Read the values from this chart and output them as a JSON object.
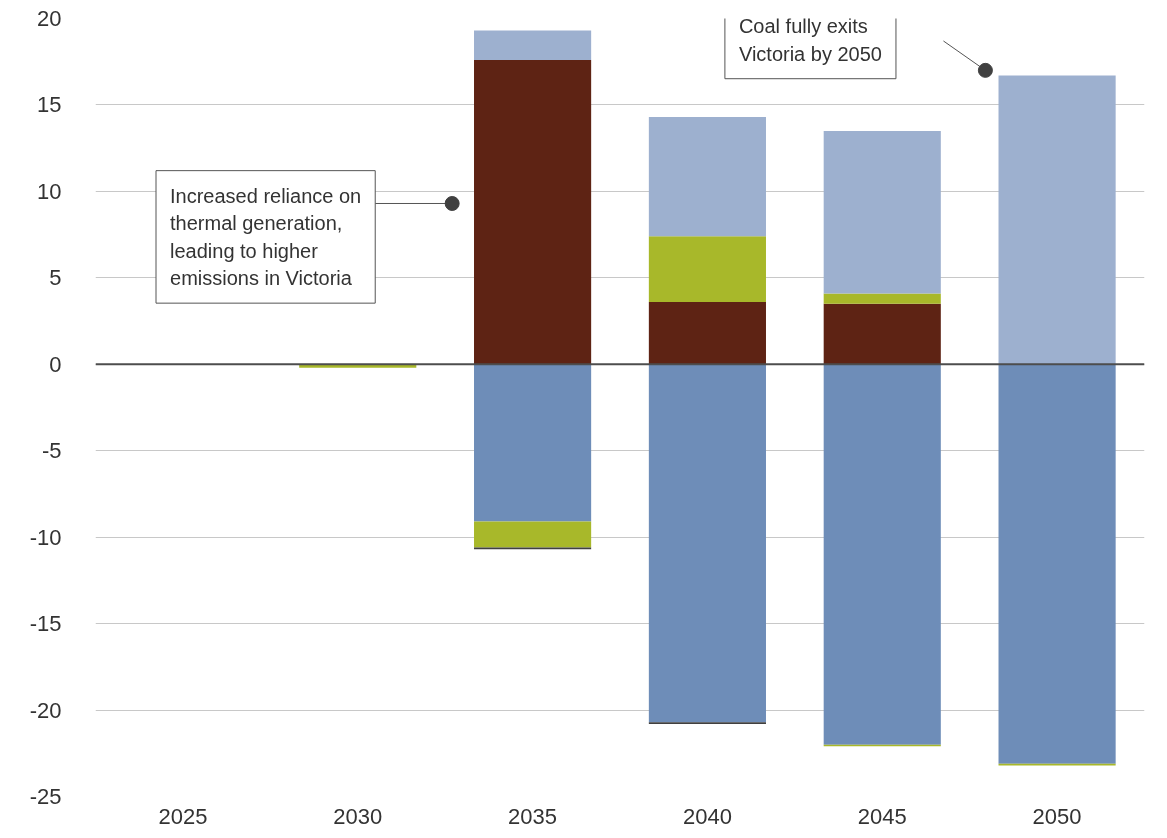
{
  "chart_data": {
    "type": "bar",
    "stacked": true,
    "categories": [
      "2025",
      "2030",
      "2035",
      "2040",
      "2045",
      "2050"
    ],
    "series": [
      {
        "color": "#5e2314",
        "values": [
          0,
          0,
          17.6,
          3.6,
          3.5,
          0
        ]
      },
      {
        "color": "#a8b82a",
        "values": [
          0,
          0,
          0,
          3.8,
          0.6,
          0
        ]
      },
      {
        "color": "#9db0cf",
        "values": [
          0,
          0,
          1.7,
          6.9,
          9.4,
          16.7
        ]
      },
      {
        "color": "#6e8db8",
        "values": [
          0,
          0,
          -9.1,
          -20.7,
          -22.0,
          -23.1
        ]
      },
      {
        "color": "#a8b82a",
        "values": [
          0,
          -0.2,
          -1.5,
          0,
          -0.1,
          -0.1
        ]
      },
      {
        "color": "#404040",
        "values": [
          0,
          0,
          -0.1,
          -0.1,
          0,
          0
        ]
      }
    ],
    "ylim": [
      -25,
      20
    ],
    "yticks": [
      -25,
      -20,
      -15,
      -10,
      -5,
      0,
      5,
      10,
      15,
      20
    ],
    "grid": "y",
    "ref_lines": [
      {
        "axis": "y",
        "value": 0,
        "color": "#4d4d4d"
      }
    ],
    "annotations": [
      "Increased reliance on\nthermal generation,\nleading to higher\nemissions in Victoria",
      "Coal fully exits\nVictoria by 2050"
    ]
  }
}
